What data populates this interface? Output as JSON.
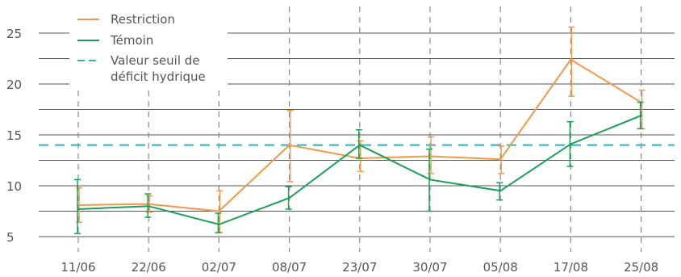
{
  "chart_data": {
    "type": "line",
    "categories": [
      "11/06",
      "22/06",
      "02/07",
      "08/07",
      "23/07",
      "30/07",
      "05/08",
      "17/08",
      "25/08"
    ],
    "ylim": [
      3.5,
      26.5
    ],
    "yticks": [
      5,
      10,
      15,
      20,
      25
    ],
    "ytick_labels": [
      "5",
      "10",
      "15",
      "20",
      "25"
    ],
    "grid": true,
    "legend_position": "top-left",
    "series": [
      {
        "name": "Restriction",
        "color": "#f0994b",
        "values": [
          8.1,
          8.2,
          7.5,
          14.0,
          12.7,
          12.9,
          12.6,
          22.4,
          18.2
        ],
        "err_low": [
          6.4,
          7.4,
          5.4,
          10.4,
          11.4,
          11.2,
          11.2,
          18.8,
          15.6
        ],
        "err_high": [
          9.8,
          9.0,
          9.5,
          17.4,
          14.4,
          14.8,
          13.9,
          25.6,
          19.4
        ]
      },
      {
        "name": "Témoin",
        "color": "#1aa058",
        "values": [
          7.7,
          8.0,
          6.2,
          8.8,
          14.0,
          10.6,
          9.5,
          14.1,
          16.9
        ],
        "err_low": [
          5.3,
          6.9,
          5.4,
          7.7,
          12.7,
          7.5,
          8.6,
          11.9,
          15.6
        ],
        "err_high": [
          10.6,
          9.2,
          7.3,
          9.9,
          15.5,
          13.6,
          10.3,
          16.3,
          18.2
        ]
      }
    ],
    "reference_line": {
      "name": "Valeur seuil de déficit hydrique",
      "name_lines": [
        "Valeur seuil de",
        "déficit hydrique"
      ],
      "value": 14.0,
      "color": "#2ab3c7"
    },
    "colors": {
      "grid_h": "#555555",
      "grid_v": "#888888",
      "tick_text": "#555555"
    }
  }
}
